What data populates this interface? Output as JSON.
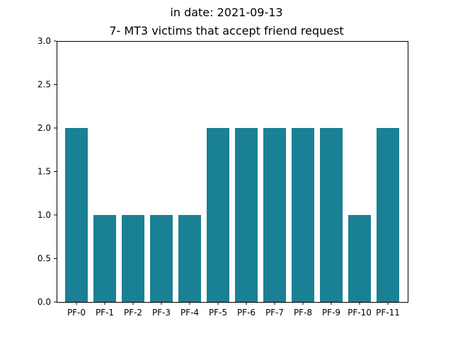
{
  "chart_data": {
    "type": "bar",
    "title": "in date: 2021-09-13",
    "subtitle": "7- MT3 victims that accept friend request",
    "xlabel": "",
    "ylabel": "",
    "categories": [
      "PF-0",
      "PF-1",
      "PF-2",
      "PF-3",
      "PF-4",
      "PF-5",
      "PF-6",
      "PF-7",
      "PF-8",
      "PF-9",
      "PF-10",
      "PF-11"
    ],
    "values": [
      2,
      1,
      1,
      1,
      1,
      2,
      2,
      2,
      2,
      2,
      1,
      2
    ],
    "ylim": [
      0,
      3.0
    ],
    "yticks": [
      "0.0",
      "0.5",
      "1.0",
      "1.5",
      "2.0",
      "2.5",
      "3.0"
    ],
    "bar_color": "#1a8096",
    "grid": false,
    "legend": "none"
  }
}
